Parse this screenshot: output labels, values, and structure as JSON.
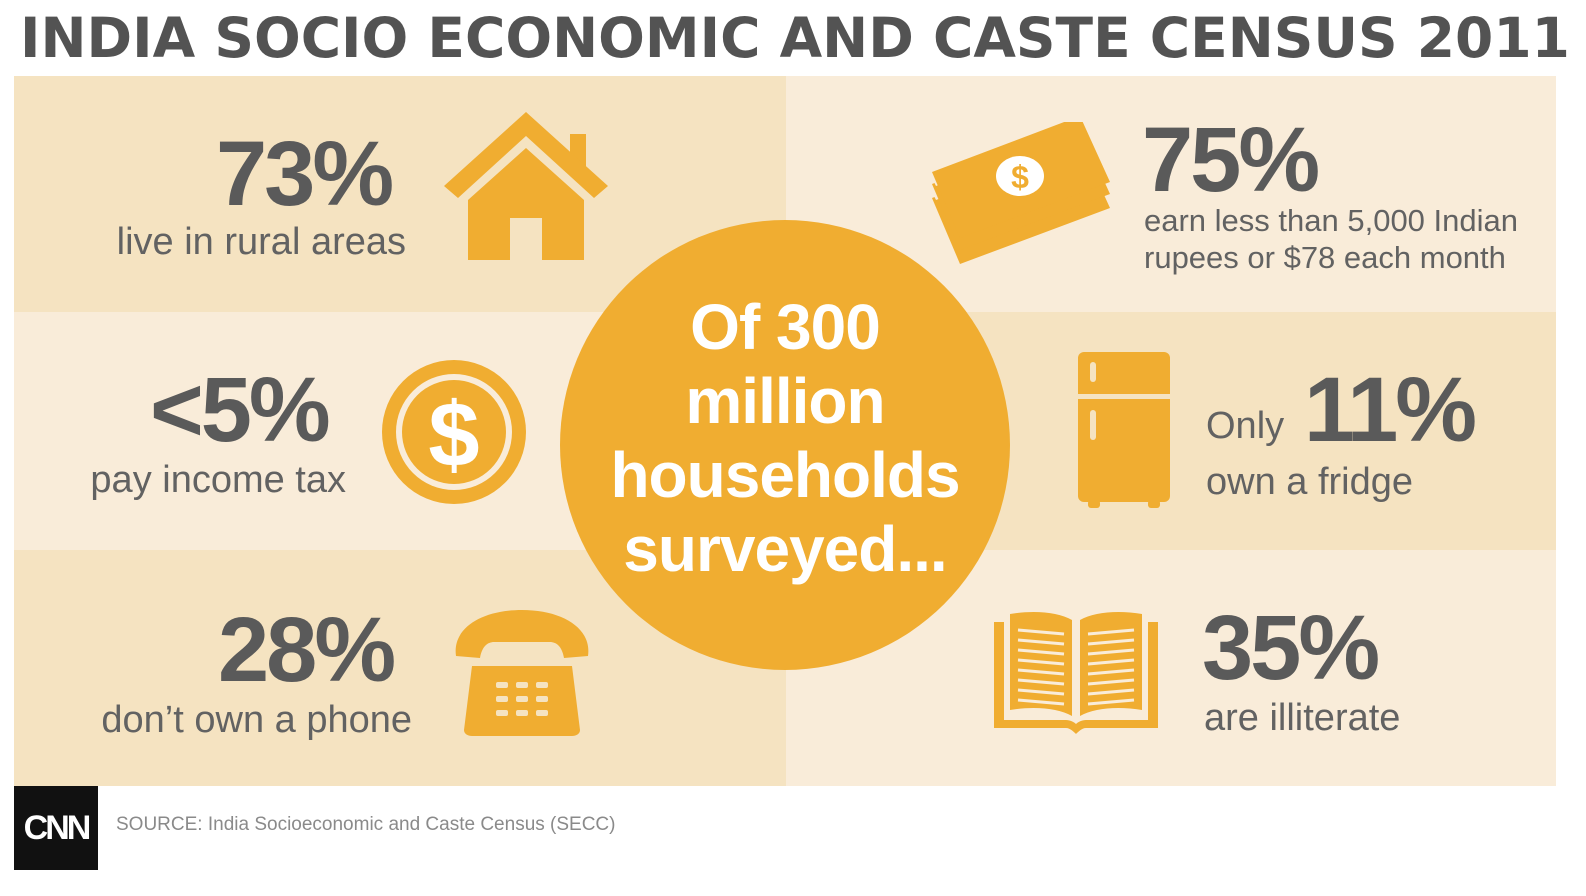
{
  "title": "INDIA SOCIO ECONOMIC AND CASTE CENSUS 2011",
  "accent_color": "#f0ad31",
  "center": {
    "lines": [
      "Of 300",
      "million",
      "households",
      "surveyed..."
    ]
  },
  "stats": {
    "rural": {
      "value": "73%",
      "label": "live in rural areas",
      "icon": "house-icon"
    },
    "earn": {
      "value": "75%",
      "label_line1": "earn less than 5,000 Indian",
      "label_line2": "rupees or $78 each month",
      "icon": "money-stack-icon"
    },
    "tax": {
      "value": "<5%",
      "label": "pay income tax",
      "icon": "dollar-coin-icon"
    },
    "fridge": {
      "prefix": "Only",
      "value": "11%",
      "label": "own a fridge",
      "icon": "fridge-icon"
    },
    "phone": {
      "value": "28%",
      "label": "don’t own a phone",
      "icon": "telephone-icon"
    },
    "illiterate": {
      "value": "35%",
      "label": "are illiterate",
      "icon": "book-icon"
    }
  },
  "footer": {
    "logo": "CNN",
    "source": "SOURCE: India Socioeconomic and Caste Census (SECC)"
  }
}
